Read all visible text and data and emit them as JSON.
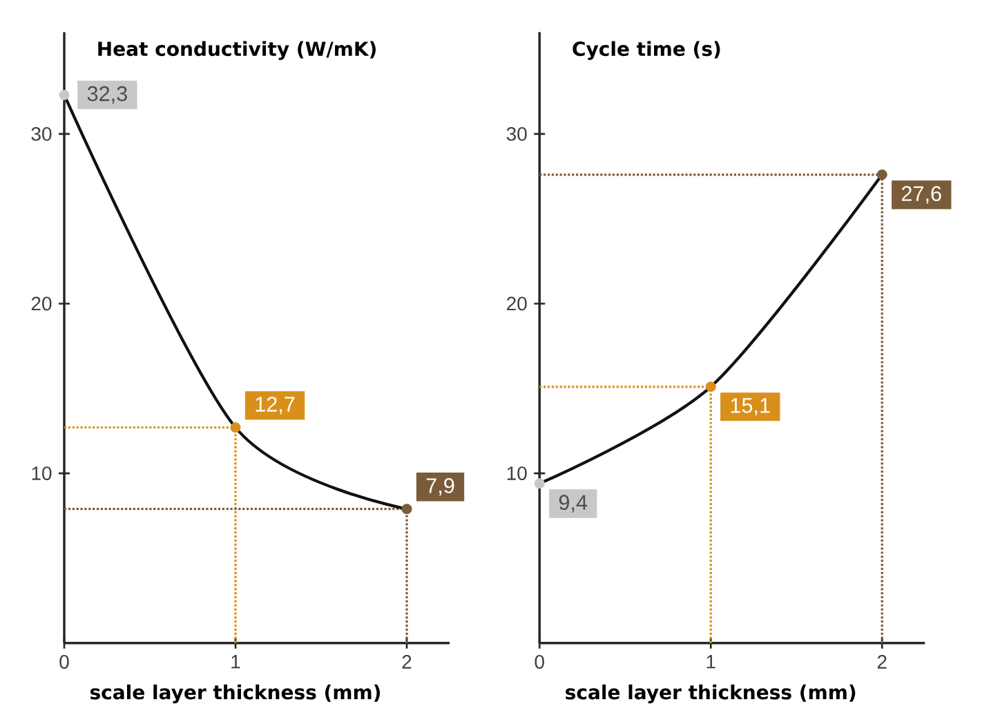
{
  "chart_data": [
    {
      "type": "line",
      "ylabel": "Heat conductivity (W/mK)",
      "xlabel": "scale layer thickness (mm)",
      "x": [
        0,
        1,
        2
      ],
      "xlim": [
        0,
        2.25
      ],
      "ylim": [
        0,
        36
      ],
      "xticks": [
        0,
        1,
        2
      ],
      "yticks": [
        10,
        20,
        30
      ],
      "marker": "circle",
      "line_style": "solid",
      "ref_lines": [
        {
          "axis": "y",
          "value": 12.7,
          "color": "#d9901a",
          "line_style": "dotted"
        },
        {
          "axis": "x",
          "value": 1,
          "color": "#d9901a",
          "line_style": "dotted"
        },
        {
          "axis": "y",
          "value": 7.9,
          "color": "#7a5c3a",
          "line_style": "dotted"
        },
        {
          "axis": "x",
          "value": 2,
          "color": "#7a5c3a",
          "line_style": "dotted"
        }
      ],
      "series": [
        {
          "color": "#111111",
          "colors": [
            "#c8c8c8",
            "#d9901a",
            "#7a5c3a"
          ],
          "values": [
            32.3,
            12.7,
            7.9
          ],
          "value_labels": [
            "32,3",
            "12,7",
            "7,9"
          ]
        }
      ]
    },
    {
      "type": "line",
      "ylabel": "Cycle time (s)",
      "xlabel": "scale layer thickness (mm)",
      "x": [
        0,
        1,
        2
      ],
      "xlim": [
        0,
        2.25
      ],
      "ylim": [
        0,
        36
      ],
      "xticks": [
        0,
        1,
        2
      ],
      "yticks": [
        10,
        20,
        30
      ],
      "marker": "circle",
      "line_style": "solid",
      "ref_lines": [
        {
          "axis": "y",
          "value": 15.1,
          "color": "#d9901a",
          "line_style": "dotted"
        },
        {
          "axis": "x",
          "value": 1,
          "color": "#d9901a",
          "line_style": "dotted"
        },
        {
          "axis": "y",
          "value": 27.6,
          "color": "#7a5c3a",
          "line_style": "dotted"
        },
        {
          "axis": "x",
          "value": 2,
          "color": "#7a5c3a",
          "line_style": "dotted"
        }
      ],
      "series": [
        {
          "color": "#111111",
          "colors": [
            "#c8c8c8",
            "#d9901a",
            "#7a5c3a"
          ],
          "values": [
            9.4,
            15.1,
            27.6
          ],
          "value_labels": [
            "9,4",
            "15,1",
            "27,6"
          ]
        }
      ]
    }
  ]
}
